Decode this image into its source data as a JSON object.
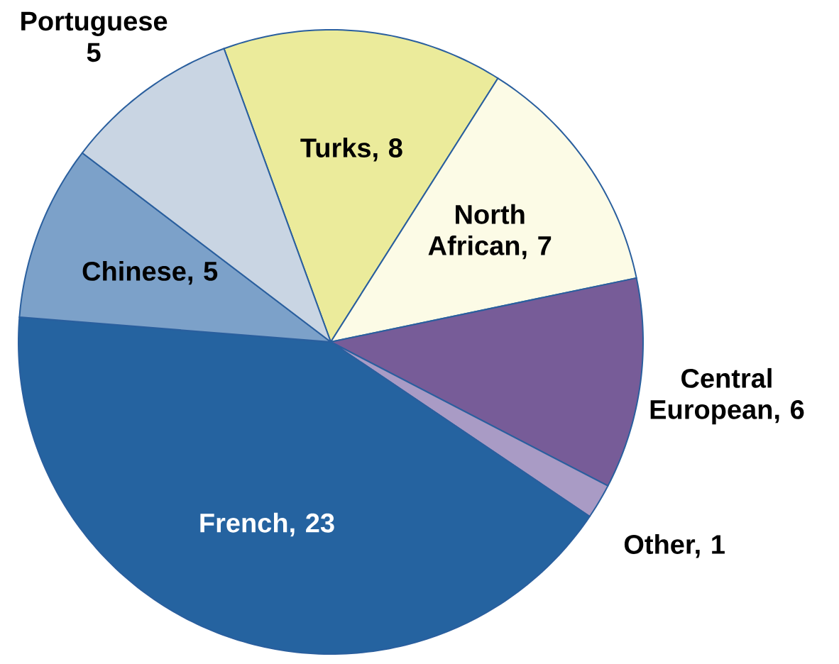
{
  "chart_data": {
    "type": "pie",
    "categories": [
      "Turks, 8",
      "North African, 7",
      "Central European, 6",
      "Other, 1",
      "French, 23",
      "Chinese, 5",
      "Portuguese 5"
    ],
    "values": [
      8,
      7,
      6,
      1,
      23,
      5,
      5
    ],
    "colors": [
      "#ebeb9b",
      "#fcfbe6",
      "#775c98",
      "#a99bc5",
      "#2563a0",
      "#7ca1c9",
      "#c9d5e3"
    ]
  }
}
